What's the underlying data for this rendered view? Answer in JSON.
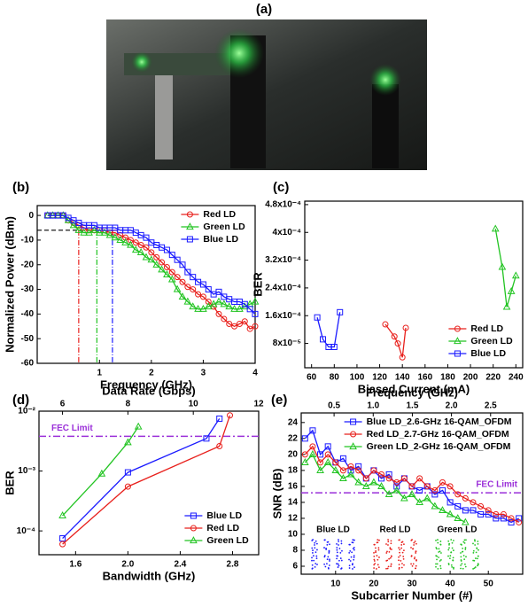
{
  "photo": {
    "label": "(a)"
  },
  "chart_data": [
    {
      "panel": "(b)",
      "type": "line",
      "xlabel": "Frequency (GHz)",
      "ylabel": "Normalized Power (dBm)",
      "xlim": [
        -0.2,
        4
      ],
      "ylim": [
        -60,
        4
      ],
      "xticks": [
        1,
        2,
        3,
        4
      ],
      "yticks": [
        0,
        -10,
        -20,
        -30,
        -40,
        -50,
        -60
      ],
      "x": [
        0,
        0.1,
        0.2,
        0.3,
        0.4,
        0.5,
        0.6,
        0.7,
        0.8,
        0.9,
        1,
        1.1,
        1.2,
        1.3,
        1.4,
        1.5,
        1.6,
        1.7,
        1.8,
        1.9,
        2,
        2.1,
        2.2,
        2.3,
        2.4,
        2.5,
        2.6,
        2.7,
        2.8,
        2.9,
        3,
        3.1,
        3.2,
        3.3,
        3.4,
        3.5,
        3.6,
        3.7,
        3.8,
        3.9,
        4
      ],
      "series": [
        {
          "name": "Red LD",
          "color": "#e8201c",
          "marker": "circle",
          "values": [
            0,
            0,
            0,
            0,
            -2,
            -3,
            -4,
            -5,
            -6,
            -6,
            -6,
            -6,
            -7,
            -7,
            -8,
            -9,
            -10,
            -11,
            -12,
            -13,
            -15,
            -17,
            -19,
            -21,
            -23,
            -25,
            -27,
            -29,
            -30,
            -32,
            -33,
            -35,
            -37,
            -40,
            -42,
            -44,
            -45,
            -44,
            -43,
            -46,
            -45
          ]
        },
        {
          "name": "Green LD",
          "color": "#22c422",
          "marker": "triangle",
          "values": [
            0,
            0,
            0,
            0,
            -2,
            -4,
            -6,
            -7,
            -7,
            -6,
            -7,
            -7,
            -8,
            -9,
            -10,
            -11,
            -12,
            -14,
            -15,
            -17,
            -18,
            -20,
            -22,
            -24,
            -26,
            -30,
            -33,
            -35,
            -37,
            -38,
            -38,
            -37,
            -36,
            -35,
            -36,
            -37,
            -38,
            -38,
            -37,
            -36,
            -35
          ]
        },
        {
          "name": "Blue LD",
          "color": "#1a1aff",
          "marker": "square",
          "values": [
            0,
            0,
            0,
            0,
            -1,
            -2,
            -3,
            -4,
            -4,
            -4,
            -5,
            -5,
            -5,
            -5,
            -6,
            -6,
            -6,
            -7,
            -8,
            -9,
            -11,
            -12,
            -13,
            -14,
            -16,
            -18,
            -20,
            -23,
            -25,
            -27,
            -28,
            -30,
            -32,
            -31,
            -33,
            -34,
            -35,
            -35,
            -36,
            -38,
            -40
          ]
        }
      ],
      "legend": "upper right",
      "ref_y": -6,
      "ref_lines": [
        {
          "x": 0.6,
          "color": "#e8201c"
        },
        {
          "x": 0.95,
          "color": "#22c422"
        },
        {
          "x": 1.25,
          "color": "#1a1aff"
        }
      ]
    },
    {
      "panel": "(c)",
      "type": "line",
      "xlabel": "Biased Current (mA)",
      "ylabel": "BER",
      "xlim": [
        54,
        246
      ],
      "ylim": [
        1e-05,
        0.00049
      ],
      "xticks": [
        60,
        80,
        100,
        120,
        140,
        160,
        180,
        200,
        220,
        240
      ],
      "yticks": [
        {
          "value": 8e-05,
          "label": "8x10⁻⁵"
        },
        {
          "value": 0.00016,
          "label": "1.6x10⁻⁴"
        },
        {
          "value": 0.00024,
          "label": "2.4x10⁻⁴"
        },
        {
          "value": 0.00032,
          "label": "3.2x10⁻⁴"
        },
        {
          "value": 0.0004,
          "label": "4x10⁻⁴"
        },
        {
          "value": 0.00048,
          "label": "4.8x10⁻⁴"
        }
      ],
      "series": [
        {
          "name": "Red LD",
          "color": "#e8201c",
          "marker": "circle",
          "x": [
            125,
            133,
            136,
            140,
            143
          ],
          "values": [
            0.000135,
            0.0001,
            8e-05,
            4e-05,
            0.000125
          ]
        },
        {
          "name": "Green LD",
          "color": "#22c422",
          "marker": "triangle",
          "x": [
            222,
            228,
            232,
            236,
            240
          ],
          "values": [
            0.00041,
            0.0003,
            0.000185,
            0.00023,
            0.000275
          ]
        },
        {
          "name": "Blue LD",
          "color": "#1a1aff",
          "marker": "square",
          "x": [
            65,
            70,
            75,
            80,
            85
          ],
          "values": [
            0.000155,
            9.2e-05,
            7e-05,
            7e-05,
            0.00017
          ]
        }
      ],
      "legend": "lower right"
    },
    {
      "panel": "(d)",
      "type": "line",
      "xlabel": "Bandwidth (GHz)",
      "ylabel": "BER",
      "x2label": "Data Rate (Gbps)",
      "xlim": [
        1.32,
        3
      ],
      "ylim": [
        4e-05,
        0.01
      ],
      "yscale": "log",
      "xticks": [
        1.6,
        {
          "value": 2,
          "label": "2.0"
        },
        2.4,
        2.8
      ],
      "yticks": [
        {
          "value": 0.0001,
          "label": "10⁻⁴"
        },
        {
          "value": 0.001,
          "label": "10⁻³"
        },
        {
          "value": 0.01,
          "label": "10⁻²"
        }
      ],
      "x2lim": [
        5.28,
        12
      ],
      "x2ticks": [
        6,
        8,
        10,
        12
      ],
      "hline": {
        "value": 0.0038,
        "label": "FEC Limit",
        "color": "#9b30d9"
      },
      "series": [
        {
          "name": "Blue LD",
          "color": "#1a1aff",
          "marker": "square",
          "x": [
            1.5,
            2.0,
            2.6,
            2.7
          ],
          "values": [
            7.5e-05,
            0.00095,
            0.0035,
            0.0075
          ]
        },
        {
          "name": "Red LD",
          "color": "#e8201c",
          "marker": "circle",
          "x": [
            1.5,
            2.0,
            2.7,
            2.78
          ],
          "values": [
            6e-05,
            0.00055,
            0.0026,
            0.0085
          ]
        },
        {
          "name": "Green LD",
          "color": "#22c422",
          "marker": "triangle",
          "x": [
            1.5,
            1.8,
            2.0,
            2.08
          ],
          "values": [
            0.00018,
            0.0009,
            0.003,
            0.0055
          ]
        }
      ],
      "legend": "lower right"
    },
    {
      "panel": "(e)",
      "type": "line",
      "xlabel": "Subcarrier Number (#)",
      "ylabel": "SNR (dB)",
      "x2label": "Frequency (GHz)",
      "xlim": [
        1,
        59
      ],
      "ylim": [
        5,
        25.2
      ],
      "xticks": [
        10,
        20,
        30,
        40,
        50
      ],
      "yticks": [
        6,
        8,
        10,
        12,
        14,
        16,
        18,
        20,
        22,
        24
      ],
      "x2lim": [
        0.08,
        2.91
      ],
      "x2ticks": [
        0.5,
        {
          "value": 1,
          "label": "1.0"
        },
        1.5,
        {
          "value": 2,
          "label": "2.0"
        },
        2.5
      ],
      "hline": {
        "value": 15.2,
        "label": "FEC Limit",
        "color": "#9b30d9"
      },
      "x": [
        2,
        4,
        6,
        8,
        10,
        12,
        14,
        16,
        18,
        20,
        22,
        24,
        26,
        28,
        30,
        32,
        34,
        36,
        38,
        40,
        42,
        44,
        46,
        48,
        50,
        52,
        54,
        56,
        58
      ],
      "series": [
        {
          "name": "Blue LD_2.6-GHz 16-QAM_OFDM",
          "color": "#1a1aff",
          "marker": "square",
          "values": [
            22,
            23,
            20,
            21,
            19,
            19.5,
            18,
            18.5,
            17,
            18,
            17,
            17.5,
            16,
            17,
            16,
            15.5,
            16,
            15,
            15.5,
            14,
            13.5,
            13,
            13,
            12.5,
            12.5,
            12,
            12,
            11.5,
            12
          ]
        },
        {
          "name": "Red LD_2.7-GHz 16-QAM_OFDM",
          "color": "#e8201c",
          "marker": "circle",
          "values": [
            20,
            21,
            19,
            20,
            19,
            18,
            18.5,
            18,
            17,
            18,
            17.5,
            17,
            16.5,
            17,
            16,
            17,
            16,
            15.5,
            16.5,
            16,
            15,
            14.5,
            14,
            13.5,
            13,
            12.5,
            12.5,
            12,
            11.5
          ]
        },
        {
          "name": "Green LD_2-GHz 16-QAM_OFDM",
          "color": "#22c422",
          "marker": "triangle",
          "values": [
            19,
            20,
            18,
            19,
            18,
            17,
            17.5,
            16.5,
            16,
            16.5,
            16,
            15,
            15.5,
            14.5,
            15,
            14,
            14.5,
            13.5,
            13,
            12.5,
            12,
            11.5,
            null,
            null,
            null,
            null,
            null,
            null,
            null
          ]
        }
      ],
      "legend": "upper right",
      "inset_labels": [
        "Blue LD",
        "Red LD",
        "Green LD"
      ]
    }
  ]
}
